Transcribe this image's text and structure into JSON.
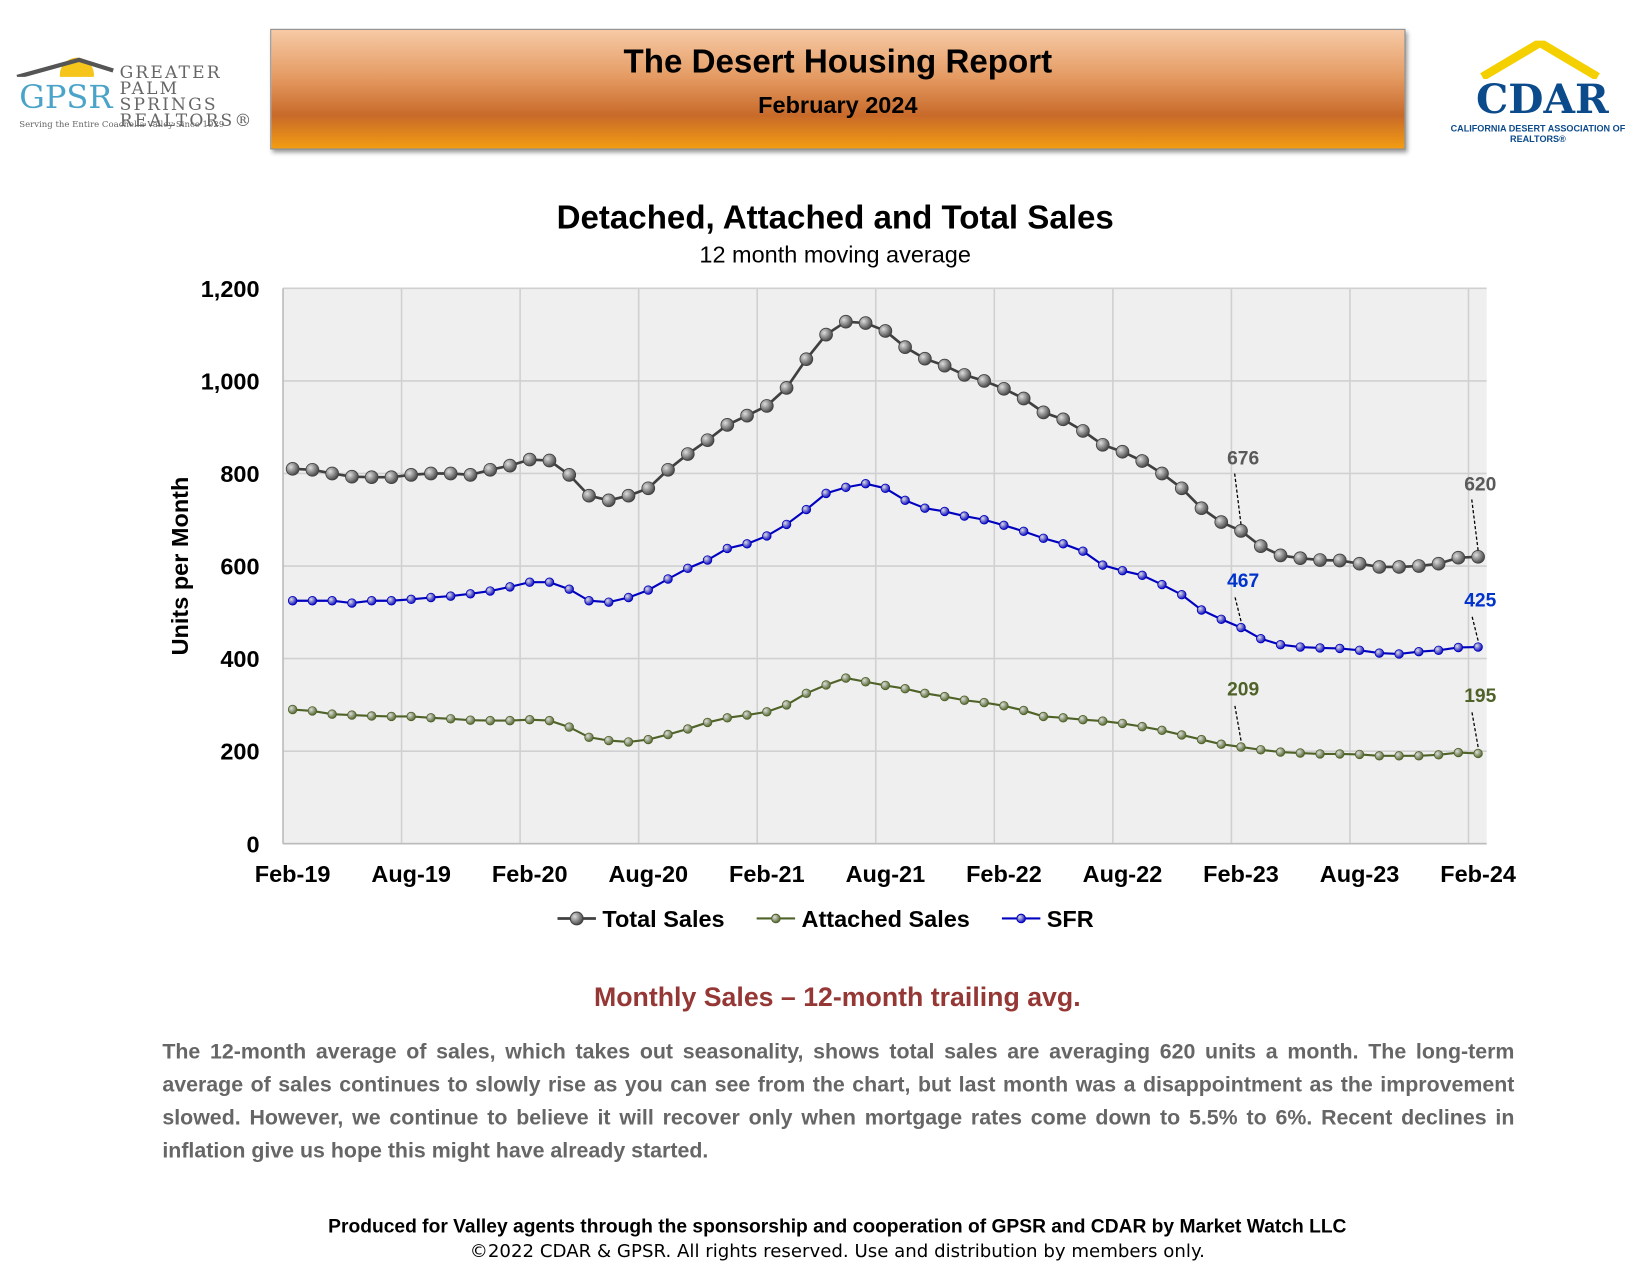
{
  "header": {
    "title": "The Desert Housing Report",
    "subtitle": "February 2024",
    "left_logo": {
      "abbr": "GPSR",
      "name": "GREATER PALM SPRINGS REALTORS®",
      "tagline": "Serving the Entire Coachella Valley Since 1929"
    },
    "right_logo": {
      "abbr": "CDAR",
      "name": "CALIFORNIA DESERT ASSOCIATION OF REALTORS®"
    }
  },
  "chart_data": {
    "type": "line",
    "title": "Detached, Attached and Total Sales",
    "subtitle": "12 month moving average",
    "y_label": "Units per Month",
    "categories": [
      "Feb-19",
      null,
      null,
      null,
      null,
      null,
      "Aug-19",
      null,
      null,
      null,
      null,
      null,
      "Feb-20",
      null,
      null,
      null,
      null,
      null,
      "Aug-20",
      null,
      null,
      null,
      null,
      null,
      "Feb-21",
      null,
      null,
      null,
      null,
      null,
      "Aug-21",
      null,
      null,
      null,
      null,
      null,
      "Feb-22",
      null,
      null,
      null,
      null,
      null,
      "Aug-22",
      null,
      null,
      null,
      null,
      null,
      "Feb-23",
      null,
      null,
      null,
      null,
      null,
      "Aug-23",
      null,
      null,
      null,
      null,
      null,
      "Feb-24"
    ],
    "ylim": [
      0,
      1200
    ],
    "yticks": [
      0,
      200,
      400,
      600,
      {
        "value": 800,
        "label": "800"
      },
      {
        "value": 1000,
        "label": "1,000"
      },
      {
        "value": 1200,
        "label": "1,200"
      }
    ],
    "grid": true,
    "legend": "bottom",
    "series": [
      {
        "name": "Total Sales",
        "color": "#404040",
        "label_color": "#595959",
        "values": [
          810,
          808,
          800,
          793,
          792,
          792,
          797,
          800,
          800,
          797,
          808,
          817,
          830,
          828,
          797,
          752,
          742,
          752,
          768,
          808,
          842,
          872,
          905,
          925,
          946,
          985,
          1047,
          1100,
          1128,
          1125,
          1108,
          1073,
          1048,
          1033,
          1013,
          1000,
          983,
          962,
          932,
          917,
          892,
          862,
          847,
          827,
          800,
          768,
          725,
          695,
          676,
          643,
          623,
          617,
          613,
          612,
          605,
          598,
          598,
          600,
          605,
          618,
          620
        ],
        "value_labels": [
          null,
          null,
          null,
          null,
          null,
          null,
          null,
          null,
          null,
          null,
          null,
          null,
          null,
          null,
          null,
          null,
          null,
          null,
          null,
          null,
          null,
          null,
          null,
          null,
          null,
          null,
          null,
          null,
          null,
          null,
          null,
          null,
          null,
          null,
          null,
          null,
          null,
          null,
          null,
          null,
          null,
          null,
          null,
          null,
          null,
          null,
          null,
          null,
          "676",
          null,
          null,
          null,
          null,
          null,
          null,
          null,
          null,
          null,
          null,
          null,
          "620"
        ]
      },
      {
        "name": "Attached Sales",
        "color": "#4f6228",
        "label_color": "#4f6228",
        "values": [
          290,
          287,
          280,
          278,
          276,
          275,
          275,
          272,
          270,
          267,
          266,
          266,
          268,
          266,
          252,
          230,
          223,
          220,
          225,
          236,
          248,
          262,
          272,
          278,
          285,
          300,
          325,
          343,
          358,
          350,
          342,
          335,
          325,
          318,
          310,
          305,
          298,
          288,
          275,
          272,
          268,
          265,
          260,
          253,
          245,
          235,
          225,
          215,
          209,
          203,
          198,
          196,
          194,
          194,
          193,
          190,
          190,
          190,
          192,
          197,
          195
        ],
        "value_labels": [
          null,
          null,
          null,
          null,
          null,
          null,
          null,
          null,
          null,
          null,
          null,
          null,
          null,
          null,
          null,
          null,
          null,
          null,
          null,
          null,
          null,
          null,
          null,
          null,
          null,
          null,
          null,
          null,
          null,
          null,
          null,
          null,
          null,
          null,
          null,
          null,
          null,
          null,
          null,
          null,
          null,
          null,
          null,
          null,
          null,
          null,
          null,
          null,
          "209",
          null,
          null,
          null,
          null,
          null,
          null,
          null,
          null,
          null,
          null,
          null,
          "195"
        ]
      },
      {
        "name": "SFR",
        "color": "#0000c0",
        "label_color": "#0033cc",
        "values": [
          525,
          525,
          525,
          520,
          525,
          525,
          528,
          532,
          535,
          540,
          546,
          555,
          565,
          565,
          550,
          525,
          522,
          532,
          548,
          572,
          595,
          613,
          638,
          648,
          665,
          690,
          722,
          757,
          770,
          778,
          768,
          742,
          725,
          718,
          708,
          700,
          688,
          675,
          660,
          648,
          632,
          602,
          590,
          580,
          560,
          538,
          505,
          485,
          467,
          443,
          430,
          425,
          423,
          422,
          418,
          412,
          410,
          415,
          418,
          424,
          425
        ],
        "value_labels": [
          null,
          null,
          null,
          null,
          null,
          null,
          null,
          null,
          null,
          null,
          null,
          null,
          null,
          null,
          null,
          null,
          null,
          null,
          null,
          null,
          null,
          null,
          null,
          null,
          null,
          null,
          null,
          null,
          null,
          null,
          null,
          null,
          null,
          null,
          null,
          null,
          null,
          null,
          null,
          null,
          null,
          null,
          null,
          null,
          null,
          null,
          null,
          null,
          "467",
          null,
          null,
          null,
          null,
          null,
          null,
          null,
          null,
          null,
          null,
          null,
          "425"
        ]
      }
    ]
  },
  "section_title": "Monthly Sales – 12-month trailing avg.",
  "body": "The 12-month average of sales, which takes out seasonality, shows total sales are averaging 620 units a month. The long-term average of sales continues to slowly rise as you can see from the chart, but last month was a disappointment as the improvement slowed. However, we continue to believe it will recover only when mortgage rates come down to 5.5% to 6%. Recent declines in inflation give us hope this might have already started.",
  "footer": {
    "line1": "Produced for Valley agents through the sponsorship and cooperation of GPSR and CDAR by Market Watch LLC",
    "line2": "©2022 CDAR & GPSR.  All rights reserved.  Use and distribution by members only."
  }
}
